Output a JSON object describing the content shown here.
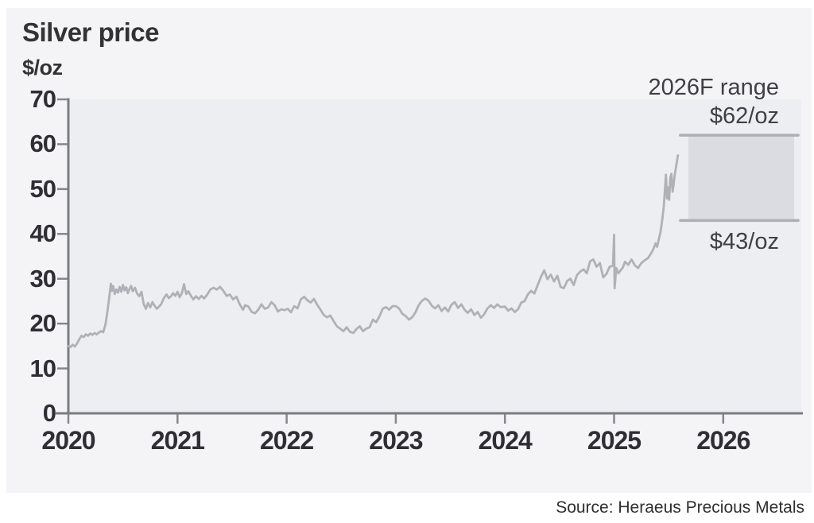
{
  "header": {
    "title": "Silver price",
    "unit_label": "$/oz"
  },
  "annotations": {
    "range_label": "2026F range",
    "range_high_label": "$62/oz",
    "range_low_label": "$43/oz"
  },
  "source": {
    "text": "Source: Heraeus Precious Metals"
  },
  "chart_data": {
    "type": "line",
    "title": "Silver price",
    "ylabel": "$/oz",
    "xlabel": "",
    "ylim": [
      0,
      70
    ],
    "xlim": [
      2020,
      2026.72
    ],
    "y_ticks": [
      0,
      10,
      20,
      30,
      40,
      50,
      60,
      70
    ],
    "x_ticks": [
      2020,
      2021,
      2022,
      2023,
      2024,
      2025,
      2026
    ],
    "grid": "off",
    "legend": "none",
    "forecast_range": {
      "label": "2026F range",
      "year": "2026F",
      "high": 62,
      "low": 43,
      "x_start": 2025.68,
      "x_end": 2026.65
    },
    "colors": {
      "plot_bg": "#edeef2",
      "card_bg": "#f4f4f6",
      "line": "#b0b1b7",
      "box_fill": "#dbdce1",
      "box_border": "#aeafb5",
      "axis": "#7b7c81",
      "tick": "#86878c",
      "text": "#333336"
    },
    "series": [
      {
        "name": "Silver price ($/oz)",
        "points": [
          [
            2020.0,
            15.0
          ],
          [
            2020.02,
            14.8
          ],
          [
            2020.04,
            15.3
          ],
          [
            2020.06,
            14.9
          ],
          [
            2020.08,
            15.6
          ],
          [
            2020.1,
            16.5
          ],
          [
            2020.12,
            17.3
          ],
          [
            2020.14,
            17.0
          ],
          [
            2020.16,
            17.6
          ],
          [
            2020.18,
            17.3
          ],
          [
            2020.2,
            17.8
          ],
          [
            2020.22,
            17.5
          ],
          [
            2020.24,
            17.9
          ],
          [
            2020.26,
            17.6
          ],
          [
            2020.28,
            18.0
          ],
          [
            2020.3,
            18.3
          ],
          [
            2020.32,
            18.1
          ],
          [
            2020.34,
            19.8
          ],
          [
            2020.36,
            23.0
          ],
          [
            2020.375,
            26.0
          ],
          [
            2020.39,
            28.9
          ],
          [
            2020.4,
            27.3
          ],
          [
            2020.41,
            28.4
          ],
          [
            2020.425,
            26.6
          ],
          [
            2020.44,
            27.6
          ],
          [
            2020.455,
            26.9
          ],
          [
            2020.47,
            28.2
          ],
          [
            2020.485,
            27.1
          ],
          [
            2020.5,
            28.6
          ],
          [
            2020.515,
            27.4
          ],
          [
            2020.53,
            28.1
          ],
          [
            2020.545,
            26.8
          ],
          [
            2020.56,
            27.7
          ],
          [
            2020.575,
            28.4
          ],
          [
            2020.59,
            27.2
          ],
          [
            2020.61,
            28.0
          ],
          [
            2020.63,
            26.7
          ],
          [
            2020.65,
            26.1
          ],
          [
            2020.67,
            27.1
          ],
          [
            2020.69,
            24.4
          ],
          [
            2020.71,
            23.3
          ],
          [
            2020.73,
            24.6
          ],
          [
            2020.75,
            23.6
          ],
          [
            2020.77,
            24.8
          ],
          [
            2020.79,
            24.0
          ],
          [
            2020.81,
            23.3
          ],
          [
            2020.83,
            23.8
          ],
          [
            2020.85,
            24.3
          ],
          [
            2020.875,
            25.7
          ],
          [
            2020.9,
            26.5
          ],
          [
            2020.92,
            25.7
          ],
          [
            2020.94,
            26.1
          ],
          [
            2020.96,
            26.8
          ],
          [
            2020.98,
            26.2
          ],
          [
            2021.0,
            27.1
          ],
          [
            2021.02,
            25.9
          ],
          [
            2021.04,
            26.8
          ],
          [
            2021.06,
            28.8
          ],
          [
            2021.08,
            26.6
          ],
          [
            2021.1,
            27.2
          ],
          [
            2021.12,
            26.3
          ],
          [
            2021.145,
            25.4
          ],
          [
            2021.17,
            26.1
          ],
          [
            2021.195,
            25.5
          ],
          [
            2021.22,
            26.2
          ],
          [
            2021.245,
            25.6
          ],
          [
            2021.27,
            26.4
          ],
          [
            2021.3,
            27.6
          ],
          [
            2021.33,
            28.0
          ],
          [
            2021.36,
            27.6
          ],
          [
            2021.39,
            28.2
          ],
          [
            2021.42,
            27.3
          ],
          [
            2021.45,
            26.2
          ],
          [
            2021.48,
            26.5
          ],
          [
            2021.51,
            25.4
          ],
          [
            2021.54,
            26.0
          ],
          [
            2021.57,
            24.3
          ],
          [
            2021.6,
            23.1
          ],
          [
            2021.62,
            24.1
          ],
          [
            2021.65,
            23.8
          ],
          [
            2021.68,
            22.6
          ],
          [
            2021.71,
            22.3
          ],
          [
            2021.74,
            23.1
          ],
          [
            2021.77,
            24.3
          ],
          [
            2021.8,
            23.3
          ],
          [
            2021.83,
            23.6
          ],
          [
            2021.86,
            24.8
          ],
          [
            2021.89,
            24.1
          ],
          [
            2021.92,
            22.7
          ],
          [
            2021.95,
            23.2
          ],
          [
            2021.98,
            23.0
          ],
          [
            2022.01,
            23.3
          ],
          [
            2022.04,
            22.5
          ],
          [
            2022.07,
            23.9
          ],
          [
            2022.1,
            23.4
          ],
          [
            2022.13,
            25.4
          ],
          [
            2022.16,
            26.0
          ],
          [
            2022.19,
            25.2
          ],
          [
            2022.22,
            24.7
          ],
          [
            2022.25,
            25.5
          ],
          [
            2022.28,
            24.2
          ],
          [
            2022.31,
            23.1
          ],
          [
            2022.34,
            21.9
          ],
          [
            2022.37,
            21.4
          ],
          [
            2022.4,
            21.8
          ],
          [
            2022.43,
            20.6
          ],
          [
            2022.46,
            19.4
          ],
          [
            2022.49,
            18.9
          ],
          [
            2022.52,
            18.3
          ],
          [
            2022.55,
            19.2
          ],
          [
            2022.58,
            18.2
          ],
          [
            2022.61,
            17.9
          ],
          [
            2022.64,
            18.8
          ],
          [
            2022.67,
            19.4
          ],
          [
            2022.7,
            18.3
          ],
          [
            2022.73,
            18.9
          ],
          [
            2022.76,
            19.2
          ],
          [
            2022.79,
            20.9
          ],
          [
            2022.82,
            20.3
          ],
          [
            2022.85,
            21.6
          ],
          [
            2022.88,
            23.3
          ],
          [
            2022.91,
            23.7
          ],
          [
            2022.94,
            23.1
          ],
          [
            2022.97,
            23.9
          ],
          [
            2023.0,
            23.9
          ],
          [
            2023.03,
            23.4
          ],
          [
            2023.06,
            22.2
          ],
          [
            2023.09,
            21.7
          ],
          [
            2023.12,
            20.9
          ],
          [
            2023.15,
            21.4
          ],
          [
            2023.18,
            22.5
          ],
          [
            2023.21,
            24.1
          ],
          [
            2023.24,
            25.1
          ],
          [
            2023.27,
            25.6
          ],
          [
            2023.3,
            25.1
          ],
          [
            2023.33,
            24.0
          ],
          [
            2023.36,
            23.4
          ],
          [
            2023.39,
            24.1
          ],
          [
            2023.42,
            22.8
          ],
          [
            2023.45,
            23.6
          ],
          [
            2023.48,
            22.7
          ],
          [
            2023.51,
            24.2
          ],
          [
            2023.54,
            24.8
          ],
          [
            2023.57,
            23.5
          ],
          [
            2023.6,
            24.3
          ],
          [
            2023.63,
            23.1
          ],
          [
            2023.66,
            22.4
          ],
          [
            2023.69,
            23.2
          ],
          [
            2023.72,
            21.9
          ],
          [
            2023.75,
            22.6
          ],
          [
            2023.78,
            21.3
          ],
          [
            2023.81,
            22.1
          ],
          [
            2023.84,
            23.4
          ],
          [
            2023.87,
            24.1
          ],
          [
            2023.9,
            23.5
          ],
          [
            2023.93,
            24.3
          ],
          [
            2023.96,
            23.7
          ],
          [
            2024.0,
            23.8
          ],
          [
            2024.03,
            22.9
          ],
          [
            2024.06,
            23.4
          ],
          [
            2024.09,
            22.6
          ],
          [
            2024.12,
            23.2
          ],
          [
            2024.15,
            24.7
          ],
          [
            2024.18,
            25.0
          ],
          [
            2024.21,
            26.5
          ],
          [
            2024.24,
            27.3
          ],
          [
            2024.27,
            26.7
          ],
          [
            2024.3,
            28.6
          ],
          [
            2024.33,
            30.4
          ],
          [
            2024.36,
            31.9
          ],
          [
            2024.39,
            29.9
          ],
          [
            2024.42,
            30.9
          ],
          [
            2024.45,
            29.4
          ],
          [
            2024.48,
            30.7
          ],
          [
            2024.51,
            28.2
          ],
          [
            2024.54,
            27.9
          ],
          [
            2024.57,
            29.5
          ],
          [
            2024.6,
            30.0
          ],
          [
            2024.63,
            28.6
          ],
          [
            2024.66,
            30.8
          ],
          [
            2024.69,
            31.6
          ],
          [
            2024.72,
            32.1
          ],
          [
            2024.75,
            31.2
          ],
          [
            2024.78,
            33.9
          ],
          [
            2024.81,
            34.3
          ],
          [
            2024.84,
            32.7
          ],
          [
            2024.87,
            33.5
          ],
          [
            2024.9,
            30.3
          ],
          [
            2024.93,
            31.1
          ],
          [
            2024.96,
            32.7
          ],
          [
            2024.99,
            32.9
          ],
          [
            2025.0,
            39.8
          ],
          [
            2025.005,
            27.9
          ],
          [
            2025.02,
            32.4
          ],
          [
            2025.04,
            31.2
          ],
          [
            2025.06,
            31.9
          ],
          [
            2025.08,
            32.5
          ],
          [
            2025.1,
            33.8
          ],
          [
            2025.13,
            33.1
          ],
          [
            2025.16,
            34.3
          ],
          [
            2025.19,
            33.0
          ],
          [
            2025.22,
            32.4
          ],
          [
            2025.25,
            33.5
          ],
          [
            2025.28,
            34.1
          ],
          [
            2025.31,
            34.6
          ],
          [
            2025.34,
            35.7
          ],
          [
            2025.36,
            36.6
          ],
          [
            2025.38,
            37.9
          ],
          [
            2025.395,
            37.1
          ],
          [
            2025.41,
            38.8
          ],
          [
            2025.425,
            40.4
          ],
          [
            2025.44,
            42.9
          ],
          [
            2025.455,
            46.0
          ],
          [
            2025.465,
            49.4
          ],
          [
            2025.475,
            53.2
          ],
          [
            2025.485,
            47.9
          ],
          [
            2025.495,
            50.4
          ],
          [
            2025.505,
            47.6
          ],
          [
            2025.515,
            52.4
          ],
          [
            2025.525,
            53.4
          ],
          [
            2025.535,
            49.4
          ],
          [
            2025.545,
            50.9
          ],
          [
            2025.555,
            53.1
          ],
          [
            2025.57,
            55.3
          ],
          [
            2025.585,
            57.5
          ]
        ]
      }
    ]
  }
}
